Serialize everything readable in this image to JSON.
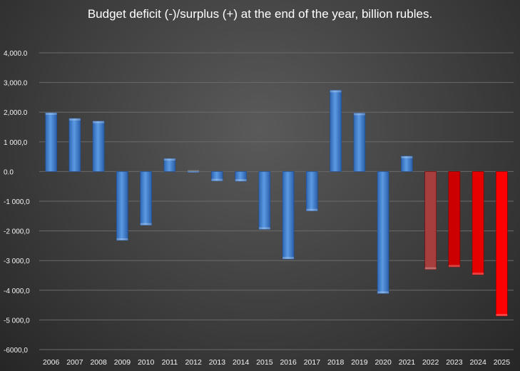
{
  "chart_data": {
    "type": "bar",
    "title": "Budget deficit (-)/surplus (+) at the end of the year, billion rubles.",
    "xlabel": "",
    "ylabel": "",
    "ylim": [
      -6000,
      4000
    ],
    "yticks": [
      {
        "value": 4000,
        "label": "4,000.0"
      },
      {
        "value": 3000,
        "label": "3,000.0"
      },
      {
        "value": 2000,
        "label": "2,000.0"
      },
      {
        "value": 1000,
        "label": "1 000,0"
      },
      {
        "value": 0,
        "label": "0.0"
      },
      {
        "value": -1000,
        "label": "-1 000,0"
      },
      {
        "value": -2000,
        "label": "-2 000,0"
      },
      {
        "value": -3000,
        "label": "-3 000,0"
      },
      {
        "value": -4000,
        "label": "-4 000,0"
      },
      {
        "value": -5000,
        "label": "-5 000,0"
      },
      {
        "value": -6000,
        "label": "-6000,0"
      }
    ],
    "grid": true,
    "categories": [
      "2006",
      "2007",
      "2008",
      "2009",
      "2010",
      "2011",
      "2012",
      "2013",
      "2014",
      "2015",
      "2016",
      "2017",
      "2018",
      "2019",
      "2020",
      "2021",
      "2022",
      "2023",
      "2024",
      "2025"
    ],
    "values": [
      1980,
      1790,
      1700,
      -2320,
      -1810,
      440,
      -30,
      -320,
      -330,
      -1950,
      -2950,
      -1330,
      2740,
      1970,
      -4110,
      520,
      -3300,
      -3220,
      -3480,
      -4870
    ],
    "colors": [
      "#4a86d0",
      "#4a86d0",
      "#4a86d0",
      "#4a86d0",
      "#4a86d0",
      "#4a86d0",
      "#4a86d0",
      "#4a86d0",
      "#4a86d0",
      "#4a86d0",
      "#4a86d0",
      "#4a86d0",
      "#4a86d0",
      "#4a86d0",
      "#4a86d0",
      "#4a86d0",
      "#a63e3e",
      "#cc0000",
      "#e60000",
      "#ff0000"
    ]
  }
}
